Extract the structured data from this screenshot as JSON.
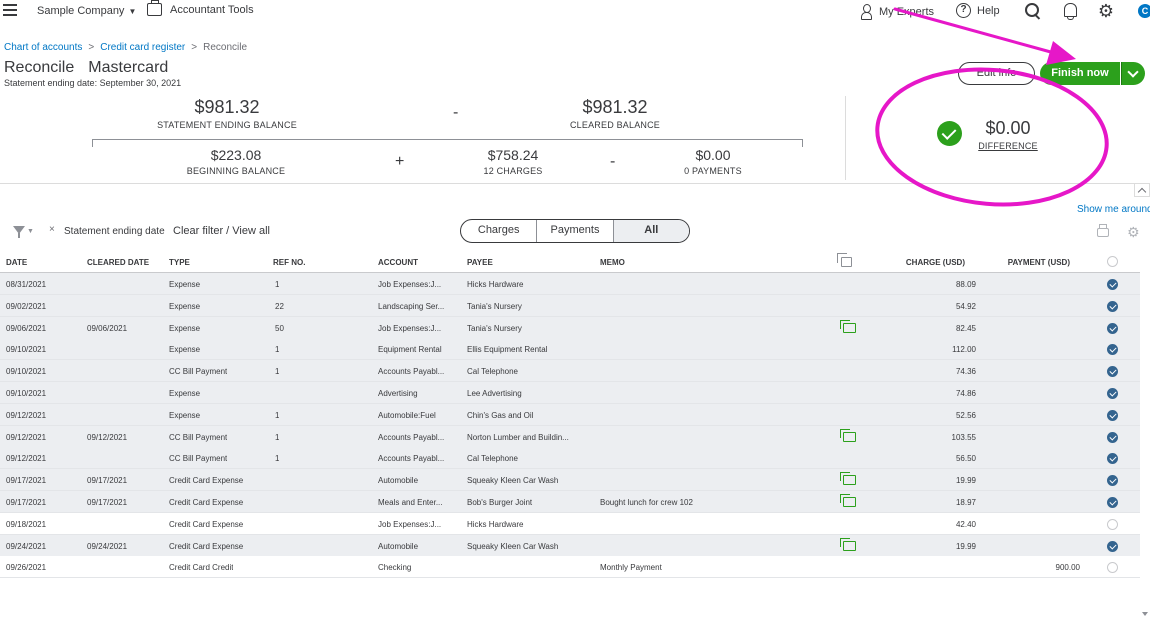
{
  "topbar": {
    "company": "Sample Company",
    "accountant_tools": "Accountant Tools",
    "my_experts": "My Experts",
    "help": "Help",
    "avatar_letter": "C"
  },
  "breadcrumb": {
    "items": [
      "Chart of accounts",
      "Credit card register",
      "Reconcile"
    ]
  },
  "page": {
    "title": "Reconcile",
    "account": "Mastercard",
    "statement_date": "Statement ending date: September 30, 2021",
    "edit_info": "Edit info",
    "finish_now": "Finish now"
  },
  "summary": {
    "statement_ending_balance": "$981.32",
    "statement_ending_balance_label": "STATEMENT ENDING BALANCE",
    "cleared_balance": "$981.32",
    "cleared_balance_label": "CLEARED BALANCE",
    "beginning_balance": "$223.08",
    "beginning_balance_label": "BEGINNING BALANCE",
    "charges": "$758.24",
    "charges_label": "12 CHARGES",
    "payments": "$0.00",
    "payments_label": "0 PAYMENTS",
    "difference": "$0.00",
    "difference_label": "DIFFERENCE",
    "minus": "-",
    "plus": "+"
  },
  "show_me_around": "Show me around",
  "filter": {
    "chip": "Statement ending date",
    "clear": "Clear filter / View all"
  },
  "tabs": [
    "Charges",
    "Payments",
    "All"
  ],
  "columns": {
    "date": "DATE",
    "cleared_date": "CLEARED DATE",
    "type": "TYPE",
    "ref": "REF NO.",
    "account": "ACCOUNT",
    "payee": "PAYEE",
    "memo": "MEMO",
    "charge": "CHARGE (USD)",
    "payment": "PAYMENT (USD)"
  },
  "rows": [
    {
      "date": "08/31/2021",
      "cleared": "",
      "type": "Expense",
      "ref": "1",
      "account": "Job Expenses:J...",
      "payee": "Hicks Hardware",
      "memo": "",
      "attach": false,
      "charge": "88.09",
      "payment": "",
      "checked": true
    },
    {
      "date": "09/02/2021",
      "cleared": "",
      "type": "Expense",
      "ref": "22",
      "account": "Landscaping Ser...",
      "payee": "Tania's Nursery",
      "memo": "",
      "attach": false,
      "charge": "54.92",
      "payment": "",
      "checked": true
    },
    {
      "date": "09/06/2021",
      "cleared": "09/06/2021",
      "type": "Expense",
      "ref": "50",
      "account": "Job Expenses:J...",
      "payee": "Tania's Nursery",
      "memo": "",
      "attach": true,
      "charge": "82.45",
      "payment": "",
      "checked": true
    },
    {
      "date": "09/10/2021",
      "cleared": "",
      "type": "Expense",
      "ref": "1",
      "account": "Equipment Rental",
      "payee": "Ellis Equipment Rental",
      "memo": "",
      "attach": false,
      "charge": "112.00",
      "payment": "",
      "checked": true
    },
    {
      "date": "09/10/2021",
      "cleared": "",
      "type": "CC Bill Payment",
      "ref": "1",
      "account": "Accounts Payabl...",
      "payee": "Cal Telephone",
      "memo": "",
      "attach": false,
      "charge": "74.36",
      "payment": "",
      "checked": true
    },
    {
      "date": "09/10/2021",
      "cleared": "",
      "type": "Expense",
      "ref": "",
      "account": "Advertising",
      "payee": "Lee Advertising",
      "memo": "",
      "attach": false,
      "charge": "74.86",
      "payment": "",
      "checked": true
    },
    {
      "date": "09/12/2021",
      "cleared": "",
      "type": "Expense",
      "ref": "1",
      "account": "Automobile:Fuel",
      "payee": "Chin's Gas and Oil",
      "memo": "",
      "attach": false,
      "charge": "52.56",
      "payment": "",
      "checked": true
    },
    {
      "date": "09/12/2021",
      "cleared": "09/12/2021",
      "type": "CC Bill Payment",
      "ref": "1",
      "account": "Accounts Payabl...",
      "payee": "Norton Lumber and Buildin...",
      "memo": "",
      "attach": true,
      "charge": "103.55",
      "payment": "",
      "checked": true
    },
    {
      "date": "09/12/2021",
      "cleared": "",
      "type": "CC Bill Payment",
      "ref": "1",
      "account": "Accounts Payabl...",
      "payee": "Cal Telephone",
      "memo": "",
      "attach": false,
      "charge": "56.50",
      "payment": "",
      "checked": true
    },
    {
      "date": "09/17/2021",
      "cleared": "09/17/2021",
      "type": "Credit Card Expense",
      "ref": "",
      "account": "Automobile",
      "payee": "Squeaky Kleen Car Wash",
      "memo": "",
      "attach": true,
      "charge": "19.99",
      "payment": "",
      "checked": true
    },
    {
      "date": "09/17/2021",
      "cleared": "09/17/2021",
      "type": "Credit Card Expense",
      "ref": "",
      "account": "Meals and Enter...",
      "payee": "Bob's Burger Joint",
      "memo": "Bought lunch for crew 102",
      "attach": true,
      "charge": "18.97",
      "payment": "",
      "checked": true
    },
    {
      "date": "09/18/2021",
      "cleared": "",
      "type": "Credit Card Expense",
      "ref": "",
      "account": "Job Expenses:J...",
      "payee": "Hicks Hardware",
      "memo": "",
      "attach": false,
      "charge": "42.40",
      "payment": "",
      "checked": false
    },
    {
      "date": "09/24/2021",
      "cleared": "09/24/2021",
      "type": "Credit Card Expense",
      "ref": "",
      "account": "Automobile",
      "payee": "Squeaky Kleen Car Wash",
      "memo": "",
      "attach": true,
      "charge": "19.99",
      "payment": "",
      "checked": true
    },
    {
      "date": "09/26/2021",
      "cleared": "",
      "type": "Credit Card Credit",
      "ref": "",
      "account": "Checking",
      "payee": "",
      "memo": "Monthly Payment",
      "attach": false,
      "charge": "",
      "payment": "900.00",
      "checked": false
    }
  ],
  "annotation_color": "#e617c8"
}
